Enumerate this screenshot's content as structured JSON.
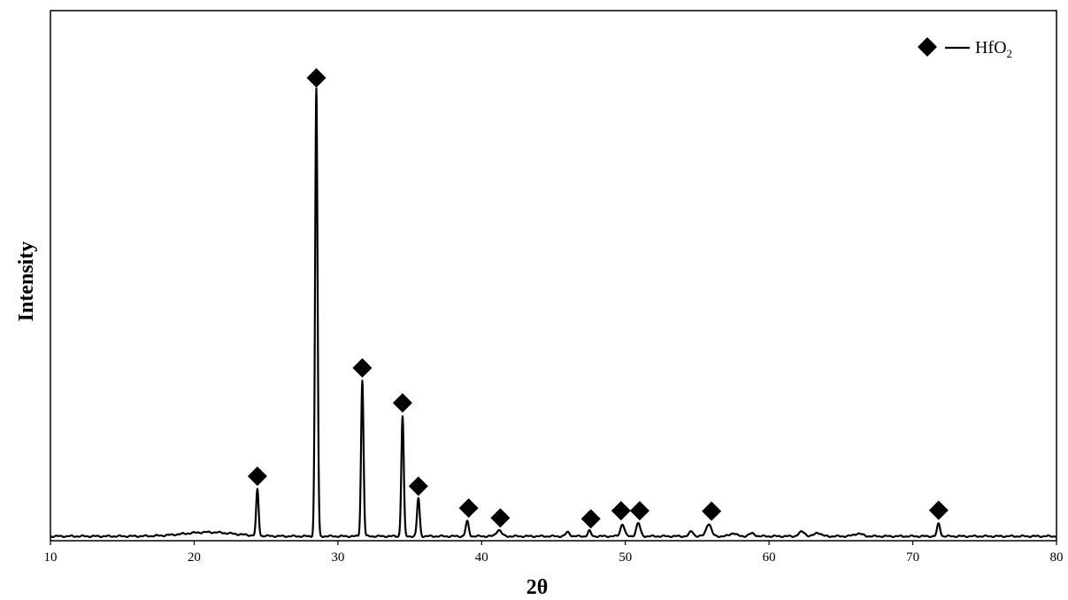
{
  "chart_data": {
    "type": "line",
    "title": "",
    "xlabel": "2θ",
    "ylabel": "Intensity",
    "xlim": [
      10,
      80
    ],
    "ylim": [
      0,
      100
    ],
    "x_ticks": [
      10,
      20,
      30,
      40,
      50,
      60,
      70,
      80
    ],
    "grid": false,
    "legend": {
      "placement": "top-right",
      "marker": "diamond",
      "label_main": "HfO",
      "label_sub": "2"
    },
    "series": [
      {
        "name": "HfO2",
        "color": "#000000",
        "baseline": 0.6,
        "peaks": [
          {
            "x": 24.4,
            "h": 10.3,
            "w": 0.12
          },
          {
            "x": 28.5,
            "h": 100.0,
            "w": 0.12
          },
          {
            "x": 31.7,
            "h": 34.8,
            "w": 0.12
          },
          {
            "x": 34.5,
            "h": 26.8,
            "w": 0.12
          },
          {
            "x": 35.6,
            "h": 8.5,
            "w": 0.13
          },
          {
            "x": 39.0,
            "h": 3.3,
            "w": 0.15
          },
          {
            "x": 41.2,
            "h": 1.4,
            "w": 0.25
          },
          {
            "x": 47.5,
            "h": 1.2,
            "w": 0.15
          },
          {
            "x": 49.8,
            "h": 2.7,
            "w": 0.2
          },
          {
            "x": 50.9,
            "h": 2.9,
            "w": 0.2
          },
          {
            "x": 55.8,
            "h": 2.8,
            "w": 0.25
          },
          {
            "x": 71.8,
            "h": 2.8,
            "w": 0.15
          }
        ],
        "humps": [
          {
            "x": 21.0,
            "h": 0.9,
            "w": 2.5
          },
          {
            "x": 46.0,
            "h": 0.9,
            "w": 0.2
          },
          {
            "x": 54.6,
            "h": 1.1,
            "w": 0.2
          },
          {
            "x": 57.5,
            "h": 0.7,
            "w": 0.3
          },
          {
            "x": 58.8,
            "h": 0.6,
            "w": 0.3
          },
          {
            "x": 62.3,
            "h": 1.0,
            "w": 0.3
          },
          {
            "x": 63.4,
            "h": 0.8,
            "w": 0.3
          },
          {
            "x": 66.2,
            "h": 0.6,
            "w": 0.4
          }
        ]
      }
    ],
    "markers": [
      {
        "x": 24.4,
        "y": 14.0
      },
      {
        "x": 28.5,
        "y": 103.0
      },
      {
        "x": 31.7,
        "y": 38.2
      },
      {
        "x": 34.5,
        "y": 30.4
      },
      {
        "x": 35.6,
        "y": 11.8
      },
      {
        "x": 39.1,
        "y": 6.9
      },
      {
        "x": 41.3,
        "y": 4.7
      },
      {
        "x": 47.6,
        "y": 4.5
      },
      {
        "x": 49.7,
        "y": 6.3
      },
      {
        "x": 51.0,
        "y": 6.3
      },
      {
        "x": 56.0,
        "y": 6.2
      },
      {
        "x": 71.8,
        "y": 6.4
      }
    ]
  }
}
